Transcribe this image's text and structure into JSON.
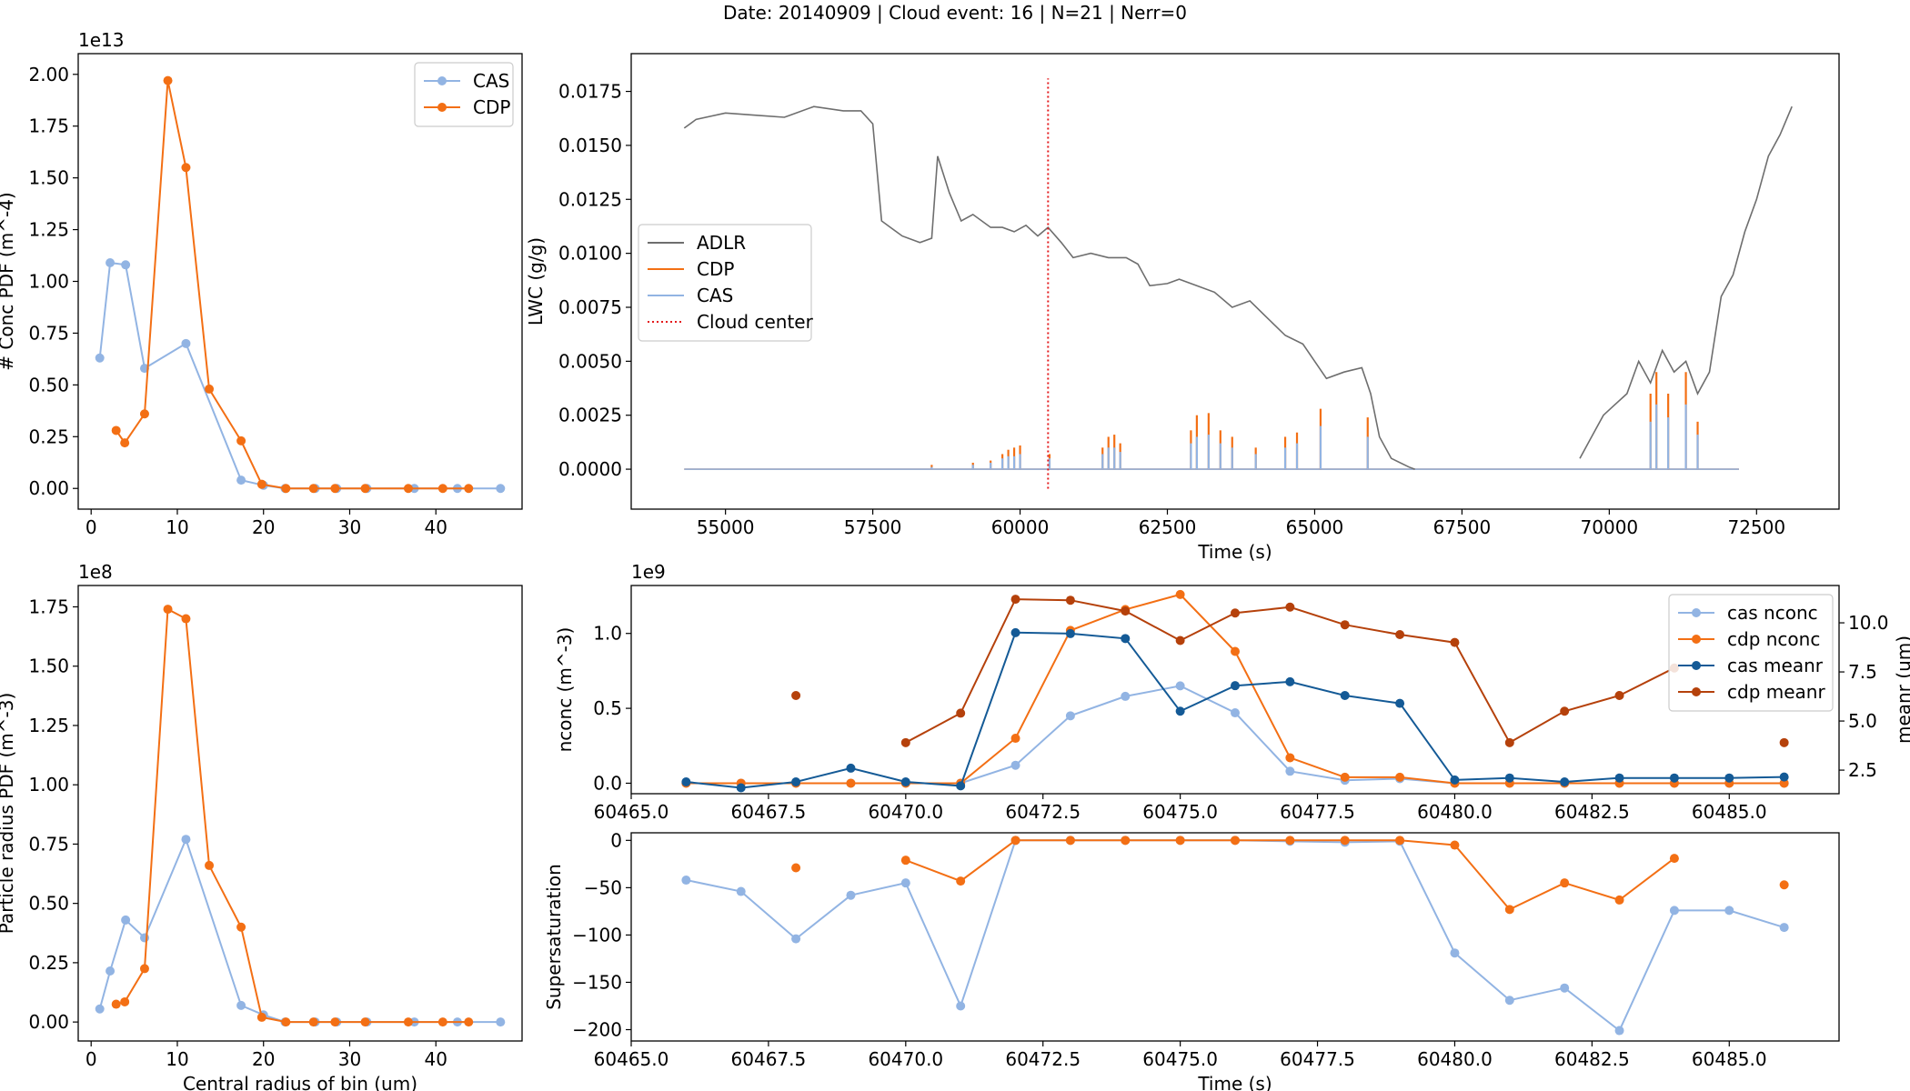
{
  "suptitle": "Date: 20140909 | Cloud event: 16 | N=21 | Nerr=0",
  "colors": {
    "cas": "#92b4e3",
    "cdp": "#f36f14",
    "adlr": "#6e6e6e",
    "cloud_center": "#e41a1c",
    "cas_meanr": "#145a96",
    "cdp_meanr": "#b5410b"
  },
  "chart_data": [
    {
      "id": "conc_pdf",
      "type": "line",
      "xlabel": "",
      "ylabel": "# Conc PDF (m^-4)",
      "offset_text": "1e13",
      "xlim": [
        -1.5,
        50
      ],
      "ylim": [
        -0.1,
        2.1
      ],
      "xticks": [
        0,
        10,
        20,
        30,
        40
      ],
      "yticks": [
        0.0,
        0.25,
        0.5,
        0.75,
        1.0,
        1.25,
        1.5,
        1.75,
        2.0
      ],
      "ytick_labels": [
        "0.00",
        "0.25",
        "0.50",
        "0.75",
        "1.00",
        "1.25",
        "1.50",
        "1.75",
        "2.00"
      ],
      "legend_position": "upper-right",
      "series": [
        {
          "name": "CAS",
          "color_key": "cas",
          "x": [
            1,
            2.2,
            4,
            6.2,
            11,
            17.4,
            20,
            22.5,
            26,
            28.5,
            32,
            37.5,
            42.5,
            47.5
          ],
          "y": [
            0.63,
            1.09,
            1.08,
            0.58,
            0.7,
            0.04,
            0.015,
            0,
            0,
            0,
            0,
            0,
            0,
            0
          ]
        },
        {
          "name": "CDP",
          "color_key": "cdp",
          "x": [
            2.9,
            3.9,
            6.2,
            8.9,
            11,
            13.7,
            17.4,
            19.8,
            22.6,
            25.8,
            28.3,
            31.8,
            36.8,
            40.8,
            43.8
          ],
          "y": [
            0.28,
            0.22,
            0.36,
            1.97,
            1.55,
            0.48,
            0.23,
            0.02,
            0,
            0,
            0,
            0,
            0,
            0,
            0
          ]
        }
      ]
    },
    {
      "id": "lwc_time",
      "type": "line",
      "xlabel": "Time (s)",
      "ylabel": "LWC (g/g)",
      "xlim": [
        53400,
        73900
      ],
      "ylim": [
        -0.00185,
        0.01925
      ],
      "xticks": [
        55000,
        57500,
        60000,
        62500,
        65000,
        67500,
        70000,
        72500
      ],
      "yticks": [
        0,
        0.0025,
        0.005,
        0.0075,
        0.01,
        0.0125,
        0.015,
        0.0175
      ],
      "ytick_labels": [
        "0.0000",
        "0.0025",
        "0.0050",
        "0.0075",
        "0.0100",
        "0.0125",
        "0.0150",
        "0.0175"
      ],
      "legend_position": "center-left",
      "cloud_center": {
        "name": "Cloud center",
        "x": 60475,
        "y_range": [
          -0.0009,
          0.0181
        ]
      },
      "series": [
        {
          "name": "ADLR",
          "color_key": "adlr",
          "x": [
            54300,
            54500,
            55000,
            55500,
            56000,
            56500,
            57000,
            57300,
            57500,
            57650,
            57800,
            58000,
            58300,
            58500,
            58600,
            58800,
            59000,
            59200,
            59500,
            59700,
            59900,
            60100,
            60300,
            60475,
            60700,
            60900,
            61200,
            61500,
            61800,
            62000,
            62200,
            62500,
            62700,
            63000,
            63300,
            63600,
            63900,
            64200,
            64500,
            64800,
            65000,
            65200,
            65500,
            65800,
            65950,
            66100,
            66300,
            66600,
            66700
          ],
          "y": [
            0.0158,
            0.0162,
            0.0165,
            0.0164,
            0.0163,
            0.0168,
            0.0166,
            0.0166,
            0.016,
            0.0115,
            0.0112,
            0.0108,
            0.0105,
            0.0107,
            0.0145,
            0.0128,
            0.0115,
            0.0118,
            0.0112,
            0.0112,
            0.011,
            0.0113,
            0.0108,
            0.0112,
            0.0105,
            0.0098,
            0.01,
            0.0098,
            0.0098,
            0.0095,
            0.0085,
            0.0086,
            0.0088,
            0.0085,
            0.0082,
            0.0075,
            0.0078,
            0.007,
            0.0062,
            0.0058,
            0.005,
            0.0042,
            0.0045,
            0.0047,
            0.0035,
            0.0015,
            0.0005,
            0.0001,
            0.0
          ],
          "x2": [
            69500,
            69700,
            69900,
            70100,
            70300,
            70500,
            70700,
            70900,
            71100,
            71300,
            71500,
            71700,
            71900,
            72100,
            72300,
            72500,
            72700,
            72900,
            73100
          ],
          "y2": [
            0.0005,
            0.0015,
            0.0025,
            0.003,
            0.0035,
            0.005,
            0.004,
            0.0055,
            0.0045,
            0.005,
            0.0035,
            0.0045,
            0.008,
            0.009,
            0.011,
            0.0125,
            0.0145,
            0.0155,
            0.0168
          ]
        },
        {
          "name": "CDP",
          "color_key": "cdp",
          "spikes_x": [
            58500,
            59200,
            59500,
            59700,
            59800,
            59900,
            60000,
            60500,
            61400,
            61500,
            61600,
            61700,
            62900,
            63000,
            63200,
            63400,
            63600,
            64000,
            64500,
            64700,
            65100,
            65900,
            70700,
            70800,
            71000,
            71300,
            71500
          ],
          "spikes_y": [
            0.0002,
            0.0003,
            0.0004,
            0.0007,
            0.0009,
            0.001,
            0.0011,
            0.0007,
            0.001,
            0.0015,
            0.0016,
            0.0012,
            0.0018,
            0.0025,
            0.0026,
            0.0018,
            0.0015,
            0.001,
            0.0015,
            0.0017,
            0.0028,
            0.0024,
            0.0035,
            0.0045,
            0.0035,
            0.0045,
            0.0022
          ]
        },
        {
          "name": "CAS",
          "color_key": "cas",
          "spikes_x": [
            58500,
            59200,
            59500,
            59700,
            59800,
            59900,
            60000,
            60500,
            61400,
            61500,
            61600,
            61700,
            62900,
            63000,
            63200,
            63400,
            63600,
            64000,
            64500,
            64700,
            65100,
            65900,
            70700,
            70800,
            71000,
            71300,
            71500
          ],
          "spikes_y": [
            0.0001,
            0.0002,
            0.0003,
            0.0005,
            0.0006,
            0.0006,
            0.0007,
            0.0005,
            0.0007,
            0.001,
            0.001,
            0.0008,
            0.0012,
            0.0015,
            0.0016,
            0.0012,
            0.001,
            0.0007,
            0.001,
            0.0012,
            0.002,
            0.0015,
            0.0022,
            0.003,
            0.0024,
            0.003,
            0.0016
          ]
        }
      ],
      "baseline_x": [
        54300,
        72200
      ]
    },
    {
      "id": "radius_pdf",
      "type": "line",
      "xlabel": "Central radius of bin (um)",
      "ylabel": "Particle radius PDF (m^-3)",
      "offset_text": "1e8",
      "xlim": [
        -1.5,
        50
      ],
      "ylim": [
        -0.08,
        1.84
      ],
      "xticks": [
        0,
        10,
        20,
        30,
        40
      ],
      "yticks": [
        0.0,
        0.25,
        0.5,
        0.75,
        1.0,
        1.25,
        1.5,
        1.75
      ],
      "ytick_labels": [
        "0.00",
        "0.25",
        "0.50",
        "0.75",
        "1.00",
        "1.25",
        "1.50",
        "1.75"
      ],
      "series": [
        {
          "name": "CAS",
          "color_key": "cas",
          "x": [
            1,
            2.2,
            4,
            6.2,
            11,
            17.4,
            20,
            22.5,
            26,
            28.5,
            32,
            37.5,
            42.5,
            47.5
          ],
          "y": [
            0.055,
            0.215,
            0.43,
            0.355,
            0.77,
            0.07,
            0.03,
            0,
            0,
            0,
            0,
            0,
            0,
            0
          ]
        },
        {
          "name": "CDP",
          "color_key": "cdp",
          "x": [
            2.9,
            3.9,
            6.2,
            8.9,
            11,
            13.7,
            17.4,
            19.8,
            22.6,
            25.8,
            28.3,
            31.8,
            36.8,
            40.8,
            43.8
          ],
          "y": [
            0.075,
            0.085,
            0.225,
            1.74,
            1.7,
            0.66,
            0.4,
            0.02,
            0,
            0,
            0,
            0,
            0,
            0,
            0
          ]
        }
      ]
    },
    {
      "id": "nconc_meanr",
      "type": "line",
      "xlabel": "",
      "ylabel": "nconc (m^-3)",
      "y2label": "meanr (um)",
      "offset_text": "1e9",
      "xlim": [
        60465.0,
        60487.0
      ],
      "ylim": [
        -0.07,
        1.32
      ],
      "y2lim": [
        1.3,
        11.9
      ],
      "xticks": [
        60465.0,
        60467.5,
        60470.0,
        60472.5,
        60475.0,
        60477.5,
        60480.0,
        60482.5,
        60485.0
      ],
      "xtick_labels": [
        "60465.0",
        "60467.5",
        "60470.0",
        "60472.5",
        "60475.0",
        "60477.5",
        "60480.0",
        "60482.5",
        "60485.0"
      ],
      "yticks": [
        0.0,
        0.5,
        1.0
      ],
      "ytick_labels": [
        "0.0",
        "0.5",
        "1.0"
      ],
      "y2ticks": [
        2.5,
        5.0,
        7.5,
        10.0
      ],
      "y2tick_labels": [
        "2.5",
        "5.0",
        "7.5",
        "10.0"
      ],
      "legend_position": "upper-right",
      "series": [
        {
          "name": "cas nconc",
          "color_key": "cas",
          "axis": "left",
          "x": [
            60466,
            60467,
            60468,
            60469,
            60470,
            60471,
            60472,
            60473,
            60474,
            60475,
            60476,
            60477,
            60478,
            60479,
            60480,
            60481,
            60482,
            60483,
            60484,
            60485,
            60486
          ],
          "y": [
            0.0,
            0.0,
            0.0,
            0.0,
            0.0,
            0.0,
            0.12,
            0.45,
            0.58,
            0.65,
            0.47,
            0.08,
            0.02,
            0.03,
            0.0,
            0.0,
            0.0,
            0.0,
            0.0,
            0.0,
            0.0
          ]
        },
        {
          "name": "cdp nconc",
          "color_key": "cdp",
          "axis": "left",
          "x": [
            60466,
            60467,
            60468,
            60469,
            60470,
            60471,
            60472,
            60473,
            60474,
            60475,
            60476,
            60477,
            60478,
            60479,
            60480,
            60481,
            60482,
            60483,
            60484,
            60485,
            60486
          ],
          "y": [
            0.0,
            0.0,
            0.0,
            0.0,
            0.0,
            0.0,
            0.3,
            1.02,
            1.16,
            1.26,
            0.88,
            0.17,
            0.04,
            0.04,
            0.0,
            0.0,
            0.0,
            0.0,
            0.0,
            0.0,
            0.0
          ]
        },
        {
          "name": "cas meanr",
          "color_key": "cas_meanr",
          "axis": "right",
          "x": [
            60466,
            60467,
            60468,
            60469,
            60470,
            60471,
            60472,
            60473,
            60474,
            60475,
            60476,
            60477,
            60478,
            60479,
            60480,
            60481,
            60482,
            60483,
            60484,
            60485,
            60486
          ],
          "y": [
            1.9,
            1.6,
            1.9,
            2.6,
            1.9,
            1.7,
            9.5,
            9.45,
            9.2,
            5.5,
            6.8,
            7.0,
            6.3,
            5.9,
            2.0,
            2.1,
            1.9,
            2.1,
            2.1,
            2.1,
            2.15
          ]
        },
        {
          "name": "cdp meanr",
          "color_key": "cdp_meanr",
          "axis": "right",
          "x": [
            60468,
            60470,
            60471,
            60472,
            60473,
            60474,
            60475,
            60476,
            60477,
            60478,
            60479,
            60480,
            60481,
            60482,
            60483,
            60484,
            60486
          ],
          "y": [
            6.3,
            3.9,
            5.4,
            11.2,
            11.15,
            10.6,
            9.1,
            10.5,
            10.8,
            9.9,
            9.4,
            9.0,
            3.9,
            5.5,
            6.3,
            7.7,
            3.9
          ],
          "isolated_points": [
            0,
            16
          ],
          "segment_from": 1,
          "segment_to": 15
        }
      ]
    },
    {
      "id": "supersaturation",
      "type": "line",
      "xlabel": "Time (s)",
      "ylabel": "Supersaturation",
      "xlim": [
        60465.0,
        60487.0
      ],
      "ylim": [
        -212,
        8
      ],
      "xticks": [
        60465.0,
        60467.5,
        60470.0,
        60472.5,
        60475.0,
        60477.5,
        60480.0,
        60482.5,
        60485.0
      ],
      "xtick_labels": [
        "60465.0",
        "60467.5",
        "60470.0",
        "60472.5",
        "60475.0",
        "60477.5",
        "60480.0",
        "60482.5",
        "60485.0"
      ],
      "yticks": [
        0,
        -50,
        -100,
        -150,
        -200
      ],
      "ytick_labels": [
        "0",
        "−50",
        "−100",
        "−150",
        "−200"
      ],
      "series": [
        {
          "name": "cas",
          "color_key": "cas",
          "x": [
            60466,
            60467,
            60468,
            60469,
            60470,
            60471,
            60472,
            60473,
            60474,
            60475,
            60476,
            60477,
            60478,
            60479,
            60480,
            60481,
            60482,
            60483,
            60484,
            60485,
            60486
          ],
          "y": [
            -42,
            -54,
            -104,
            -58,
            -45,
            -175,
            0,
            0,
            0,
            0,
            0,
            -1,
            -2,
            -1,
            -119,
            -169,
            -156,
            -201,
            -74,
            -74,
            -92
          ]
        },
        {
          "name": "cdp",
          "color_key": "cdp",
          "x": [
            60468,
            60470,
            60471,
            60472,
            60473,
            60474,
            60475,
            60476,
            60477,
            60478,
            60479,
            60480,
            60481,
            60482,
            60483,
            60484,
            60486
          ],
          "y": [
            -29,
            -21,
            -43,
            0,
            0,
            0,
            0,
            0,
            0,
            0,
            0,
            -5,
            -73,
            -45,
            -63,
            -19,
            -47
          ],
          "isolated_points": [
            0,
            16
          ],
          "segment_from": 1,
          "segment_to": 15
        }
      ]
    }
  ]
}
